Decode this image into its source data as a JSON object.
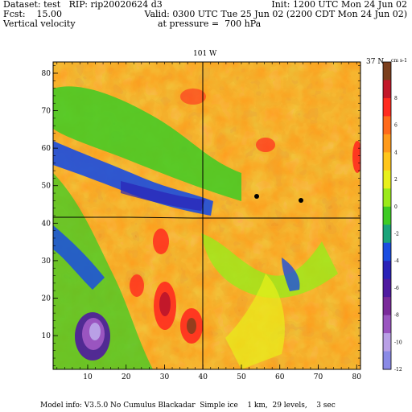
{
  "header": {
    "dataset_line": "Dataset: test   RIP: rip20020624 d3",
    "fcst_line": "Fcst:    15.00",
    "field_line": "Vertical velocity",
    "init_line": "Init: 1200 UTC Mon 24 Jun 02",
    "valid_line": "Valid: 0300 UTC Tue 25 Jun 02 (2200 CDT Mon 24 Jun 02)",
    "pressure_line": "at pressure =  700 hPa"
  },
  "map": {
    "top_label": "101 W",
    "right_label": "37 N",
    "x_ticks": [
      "10",
      "20",
      "30",
      "40",
      "50",
      "60",
      "70",
      "80"
    ],
    "y_ticks": [
      "10",
      "20",
      "30",
      "40",
      "50",
      "60",
      "70",
      "80"
    ],
    "x_range": [
      1,
      81
    ],
    "y_range": [
      1,
      83
    ]
  },
  "colorbar": {
    "unit": "cm s-1",
    "tick_labels": [
      "8",
      "6",
      "4",
      "2",
      "0",
      "-2",
      "-4",
      "-6",
      "-8",
      "-10",
      "-12"
    ],
    "colors": [
      "#7b3f1d",
      "#c2182a",
      "#ff2b1f",
      "#ff6a1a",
      "#ff9a1a",
      "#ffc61a",
      "#e8f01a",
      "#9bea1a",
      "#3ecb24",
      "#1aa37a",
      "#1a4de0",
      "#2a22b8",
      "#4f1aa0",
      "#7a2a9a",
      "#9a55c0",
      "#b9a0e6",
      "#8a8ae6"
    ]
  },
  "footer": "Model info: V3.5.0 No Cumulus Blackadar  Simple ice    1 km,  29 levels,    3 sec"
}
